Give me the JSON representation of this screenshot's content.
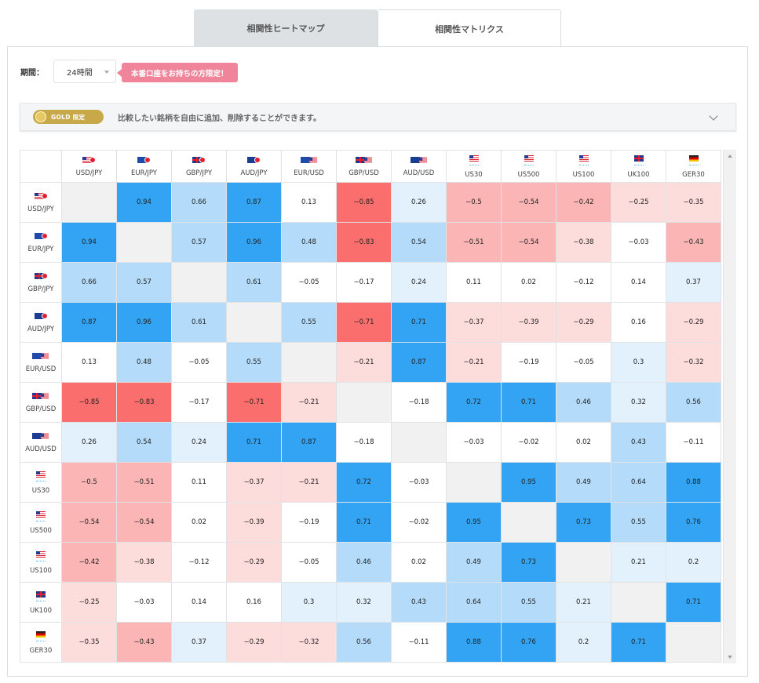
{
  "tabs": [
    {
      "label": "相関性ヒートマップ",
      "active": false
    },
    {
      "label": "相関性マトリクス",
      "active": true
    }
  ],
  "period": {
    "label": "期間：",
    "value": "24時間"
  },
  "promo_label": "本番口座をお持ちの方限定！",
  "gold": {
    "badge": "GOLD 限定",
    "description": "比較したい銘柄を自由に追加、削除することができます。"
  },
  "colors": {
    "strong_positive": "#33a4f4",
    "mid_positive": "#b4dcfa",
    "weak_positive": "#e3f1fc",
    "neutral": "#ffffff",
    "weak_negative": "#fddcdc",
    "mid_negative": "#fbb5b5",
    "strong_negative": "#fb6e6e",
    "diagonal": "#f1f1f1",
    "gold_badge": "#c8a94a",
    "promo": "#f0849a"
  },
  "symbols": [
    {
      "name": "USD/JPY",
      "flag": "us-jp"
    },
    {
      "name": "EUR/JPY",
      "flag": "eu-jp"
    },
    {
      "name": "GBP/JPY",
      "flag": "gb-jp"
    },
    {
      "name": "AUD/JPY",
      "flag": "au-jp"
    },
    {
      "name": "EUR/USD",
      "flag": "eu-us"
    },
    {
      "name": "GBP/USD",
      "flag": "gb-us"
    },
    {
      "name": "AUD/USD",
      "flag": "au-us"
    },
    {
      "name": "US30",
      "flag": "us-index"
    },
    {
      "name": "US500",
      "flag": "us-index"
    },
    {
      "name": "US100",
      "flag": "us-index"
    },
    {
      "name": "UK100",
      "flag": "gb-index"
    },
    {
      "name": "GER30",
      "flag": "de-index"
    }
  ],
  "matrix": [
    [
      null,
      "0.94",
      "0.66",
      "0.87",
      "0.13",
      "−0.85",
      "0.26",
      "−0.5",
      "−0.54",
      "−0.42",
      "−0.25",
      "−0.35"
    ],
    [
      "0.94",
      null,
      "0.57",
      "0.96",
      "0.48",
      "−0.83",
      "0.54",
      "−0.51",
      "−0.54",
      "−0.38",
      "−0.03",
      "−0.43"
    ],
    [
      "0.66",
      "0.57",
      null,
      "0.61",
      "−0.05",
      "−0.17",
      "0.24",
      "0.11",
      "0.02",
      "−0.12",
      "0.14",
      "0.37"
    ],
    [
      "0.87",
      "0.96",
      "0.61",
      null,
      "0.55",
      "−0.71",
      "0.71",
      "−0.37",
      "−0.39",
      "−0.29",
      "0.16",
      "−0.29"
    ],
    [
      "0.13",
      "0.48",
      "−0.05",
      "0.55",
      null,
      "−0.21",
      "0.87",
      "−0.21",
      "−0.19",
      "−0.05",
      "0.3",
      "−0.32"
    ],
    [
      "−0.85",
      "−0.83",
      "−0.17",
      "−0.71",
      "−0.21",
      null,
      "−0.18",
      "0.72",
      "0.71",
      "0.46",
      "0.32",
      "0.56"
    ],
    [
      "0.26",
      "0.54",
      "0.24",
      "0.71",
      "0.87",
      "−0.18",
      null,
      "−0.03",
      "−0.02",
      "0.02",
      "0.43",
      "−0.11"
    ],
    [
      "−0.5",
      "−0.51",
      "0.11",
      "−0.37",
      "−0.21",
      "0.72",
      "−0.03",
      null,
      "0.95",
      "0.49",
      "0.64",
      "0.88"
    ],
    [
      "−0.54",
      "−0.54",
      "0.02",
      "−0.39",
      "−0.19",
      "0.71",
      "−0.02",
      "0.95",
      null,
      "0.73",
      "0.55",
      "0.76"
    ],
    [
      "−0.42",
      "−0.38",
      "−0.12",
      "−0.29",
      "−0.05",
      "0.46",
      "0.02",
      "0.49",
      "0.73",
      null,
      "0.21",
      "0.2"
    ],
    [
      "−0.25",
      "−0.03",
      "0.14",
      "0.16",
      "0.3",
      "0.32",
      "0.43",
      "0.64",
      "0.55",
      "0.21",
      null,
      "0.71"
    ],
    [
      "−0.35",
      "−0.43",
      "0.37",
      "−0.29",
      "−0.32",
      "0.56",
      "−0.11",
      "0.88",
      "0.76",
      "0.2",
      "0.71",
      null
    ]
  ]
}
